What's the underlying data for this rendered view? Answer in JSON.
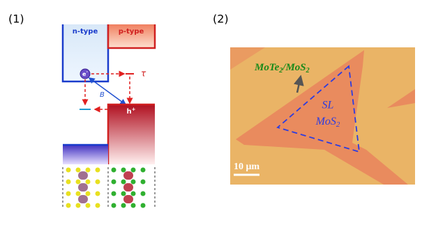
{
  "panels": [
    {
      "label": "(1)",
      "n_type": "n-type",
      "p_type": "p-type",
      "electron": "e",
      "electron_sup": "-",
      "tau": "τ",
      "beta": "B",
      "hole": "h",
      "hole_sup": "+"
    },
    {
      "label": "(2)",
      "heterostructure": [
        "MoTe",
        "2",
        "/MoS",
        "2"
      ],
      "region": "SL",
      "material": [
        "MoS",
        "2"
      ],
      "scale_bar": "10 μm"
    }
  ]
}
